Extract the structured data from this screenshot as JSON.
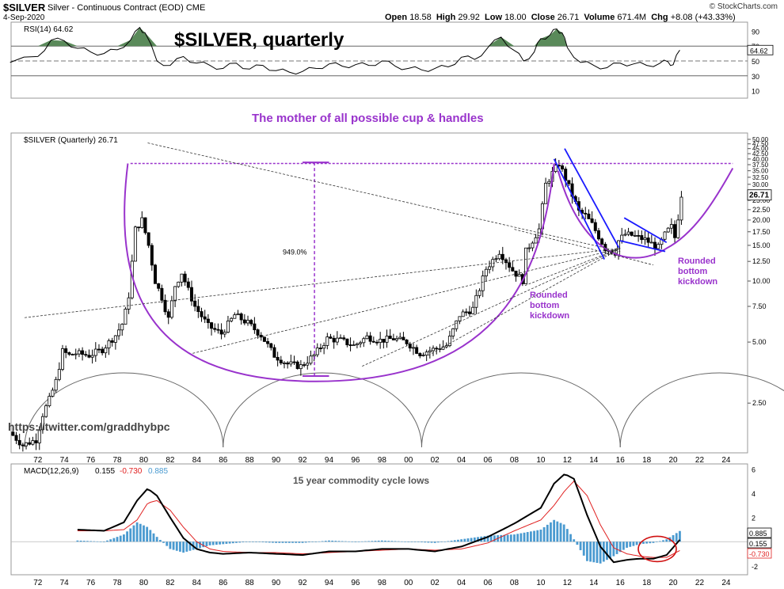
{
  "header": {
    "symbol": "$SILVER",
    "description": "Silver - Continuous Contract (EOD)",
    "exchange": "CME",
    "date": "4-Sep-2020",
    "credit": "© StockCharts.com",
    "ohlc": {
      "open_label": "Open",
      "open": "18.58",
      "high_label": "High",
      "high": "29.92",
      "low_label": "Low",
      "low": "18.00",
      "close_label": "Close",
      "close": "26.71",
      "volume_label": "Volume",
      "volume": "671.4M",
      "chg_label": "Chg",
      "chg": "+8.08 (+43.33%)"
    }
  },
  "colors": {
    "rsi_fill": "#5a8a5a",
    "annotation_purple": "#9933cc",
    "trend_blue": "#1a1aff",
    "macd_hist": "#4a9ad0",
    "macd_signal": "#e02020",
    "circle_red": "#d01010"
  },
  "chart_data": [
    {
      "type": "line",
      "name": "rsi-panel",
      "legend": "RSI(14) 64.62",
      "last_value_label": "64.62",
      "overlay_title": "$SILVER, quarterly",
      "ylim": [
        0,
        100
      ],
      "y_ticks": [
        "90",
        "70",
        "50",
        "30",
        "10"
      ],
      "reference_lines": [
        70,
        50,
        30
      ],
      "x": [
        1969.9,
        1972,
        1973,
        1974,
        1975,
        1976,
        1977,
        1978,
        1979,
        1979.7,
        1980.1,
        1981,
        1982,
        1983,
        1984,
        1985,
        1986,
        1987,
        1988,
        1989,
        1990,
        1991,
        1992,
        1993,
        1994,
        1995,
        1996,
        1997,
        1998,
        1999,
        2000,
        2001,
        2002,
        2003,
        2004,
        2005,
        2006,
        2007,
        2008,
        2008.7,
        2009.5,
        2010,
        2010.7,
        2011.2,
        2011.6,
        2012,
        2013,
        2014,
        2015,
        2016,
        2017,
        2018,
        2019,
        2019.6,
        2020,
        2020.5
      ],
      "values": [
        48,
        56,
        78,
        77,
        67,
        62,
        60,
        65,
        78,
        95,
        88,
        50,
        44,
        56,
        47,
        44,
        40,
        47,
        39,
        44,
        37,
        35,
        36,
        40,
        46,
        43,
        45,
        44,
        50,
        43,
        40,
        38,
        40,
        42,
        55,
        52,
        68,
        82,
        64,
        50,
        62,
        80,
        85,
        93,
        88,
        68,
        48,
        44,
        41,
        47,
        46,
        44,
        47,
        49,
        45,
        64.62
      ]
    },
    {
      "type": "candlestick",
      "name": "price-panel",
      "legend": "$SILVER (Quarterly) 26.71",
      "last_value_label": "26.71",
      "scale": "log",
      "ylim": [
        1.5,
        50
      ],
      "y_ticks": [
        "50.00",
        "47.50",
        "45.00",
        "42.50",
        "40.00",
        "37.50",
        "35.00",
        "32.50",
        "30.00",
        "25.00",
        "22.50",
        "20.00",
        "17.50",
        "15.00",
        "12.50",
        "10.00",
        "7.50",
        "5.00",
        "2.50"
      ],
      "x_ticks": [
        "72",
        "74",
        "76",
        "78",
        "80",
        "82",
        "84",
        "86",
        "88",
        "90",
        "92",
        "94",
        "96",
        "98",
        "00",
        "02",
        "04",
        "06",
        "08",
        "10",
        "12",
        "14",
        "16",
        "18",
        "20",
        "22",
        "24"
      ],
      "close_path": {
        "x": [
          1970,
          1971,
          1971.5,
          1972,
          1972.5,
          1973,
          1973.5,
          1974,
          1974.5,
          1975,
          1976,
          1977,
          1978,
          1978.6,
          1979,
          1979.5,
          1980,
          1980.5,
          1981,
          1981.5,
          1982,
          1982.5,
          1983,
          1983.5,
          1984,
          1985,
          1986,
          1987,
          1988,
          1989,
          1990,
          1991,
          1992,
          1993,
          1994,
          1995,
          1996,
          1997,
          1998,
          1999,
          2000,
          2001,
          2002,
          2003,
          2004,
          2005,
          2006,
          2007,
          2008,
          2008.8,
          2009,
          2010,
          2010.5,
          2011,
          2011.5,
          2012,
          2013,
          2013.5,
          2014,
          2015,
          2015.8,
          2016,
          2016.5,
          2017,
          2018,
          2019,
          2019.6,
          2020,
          2020.3,
          2020.7
        ],
        "values": [
          1.8,
          1.55,
          1.6,
          1.65,
          2.2,
          2.6,
          3.2,
          4.5,
          4.3,
          4.4,
          4.3,
          4.6,
          5.4,
          6.3,
          8.5,
          18,
          20,
          15,
          10,
          8.3,
          6.5,
          9.5,
          11,
          9,
          7.5,
          6,
          5.5,
          6.8,
          6.2,
          5.4,
          4.3,
          3.9,
          3.8,
          4.3,
          5.2,
          5.1,
          4.8,
          5.3,
          5.1,
          5.2,
          5,
          4.4,
          4.6,
          4.8,
          6.8,
          7.3,
          11.5,
          14,
          11.3,
          10,
          14,
          18,
          30,
          34,
          38,
          32,
          22,
          21,
          19,
          14.5,
          13.8,
          15.8,
          17,
          16.8,
          16,
          14.6,
          17.4,
          18.5,
          16,
          26.71
        ]
      },
      "annotations": {
        "percent_label": "949.0%",
        "rounded_bottom_1": [
          "Rounded",
          "bottom",
          "kickdown"
        ],
        "rounded_bottom_2": [
          "Rounded",
          "bottom",
          "kickdown"
        ],
        "subtitle": "The mother of all possible cup & handles",
        "watermark": "https://twitter.com/graddhybpc",
        "resistance_level": 38,
        "cycle_lows_x": [
          1971,
          1986,
          2001,
          2016
        ]
      }
    },
    {
      "type": "line",
      "name": "macd-panel",
      "legend_prefix": "MACD(12,26,9)",
      "legend_macd": "0.155",
      "legend_signal": "-0.730",
      "legend_hist": "0.885",
      "caption": "15 year commodity cycle lows",
      "ylim": [
        -2.6,
        6.3
      ],
      "y_ticks": [
        "6",
        "4",
        "2",
        "-2"
      ],
      "last_labels": [
        "0.885",
        "0.155",
        "-0.730"
      ],
      "x": [
        1975,
        1977,
        1978.5,
        1979.5,
        1980.3,
        1981,
        1982,
        1983,
        1984,
        1985,
        1986,
        1988,
        1990,
        1992,
        1994,
        1996,
        1998,
        2000,
        2002,
        2004,
        2006,
        2008,
        2010,
        2011,
        2011.8,
        2012.5,
        2013.5,
        2014.5,
        2015.5,
        2016.5,
        2017.5,
        2018.5,
        2019.5,
        2020.5
      ],
      "series": [
        {
          "name": "MACD",
          "values": [
            1.0,
            0.9,
            1.6,
            3.4,
            4.4,
            3.8,
            2.0,
            0.3,
            -0.6,
            -0.9,
            -1.0,
            -0.9,
            -1.0,
            -1.1,
            -0.8,
            -0.8,
            -0.6,
            -0.6,
            -0.8,
            -0.4,
            0.4,
            1.5,
            2.8,
            4.8,
            5.6,
            5.2,
            2.2,
            -0.4,
            -1.7,
            -1.5,
            -1.4,
            -1.4,
            -1.1,
            0.155
          ]
        },
        {
          "name": "Signal",
          "values": [
            0.9,
            0.9,
            1.0,
            1.8,
            3.2,
            3.4,
            2.6,
            1.2,
            0.0,
            -0.6,
            -0.8,
            -0.9,
            -0.9,
            -1.0,
            -0.9,
            -0.8,
            -0.7,
            -0.6,
            -0.7,
            -0.6,
            -0.1,
            0.9,
            1.8,
            3.0,
            4.2,
            5.0,
            3.8,
            1.4,
            -0.5,
            -1.0,
            -1.2,
            -1.3,
            -1.3,
            -0.73
          ]
        },
        {
          "name": "Histogram",
          "values": [
            0.1,
            0.0,
            0.6,
            1.6,
            1.2,
            0.4,
            -0.6,
            -0.9,
            -0.6,
            -0.3,
            -0.2,
            0.0,
            -0.1,
            -0.1,
            0.1,
            0.0,
            0.1,
            0.0,
            -0.1,
            0.2,
            0.5,
            0.6,
            1.0,
            1.8,
            1.4,
            0.2,
            -1.6,
            -1.8,
            -1.2,
            -0.5,
            -0.2,
            -0.1,
            0.2,
            0.885
          ]
        }
      ]
    }
  ]
}
